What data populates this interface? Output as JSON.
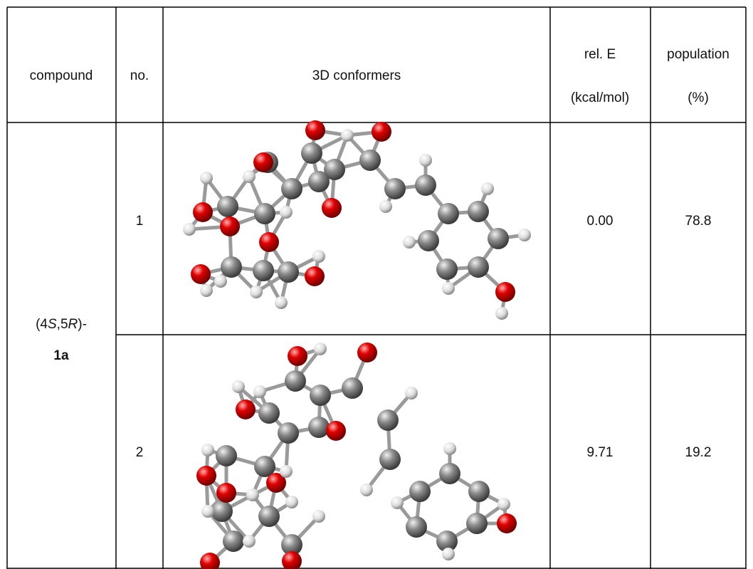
{
  "table": {
    "headers": {
      "compound": "compound",
      "no": "no.",
      "conformers": "3D conformers",
      "energy": [
        "rel. E",
        "(kcal/mol)"
      ],
      "population": [
        "population",
        "(%)"
      ]
    },
    "compound": {
      "name_parts": [
        "(4",
        "S",
        ",5",
        "R",
        ")-"
      ],
      "label": "1a"
    },
    "rows": [
      {
        "no": "1",
        "energy": "0.00",
        "population": "78.8"
      },
      {
        "no": "2",
        "energy": "9.71",
        "population": "19.2"
      }
    ]
  }
}
